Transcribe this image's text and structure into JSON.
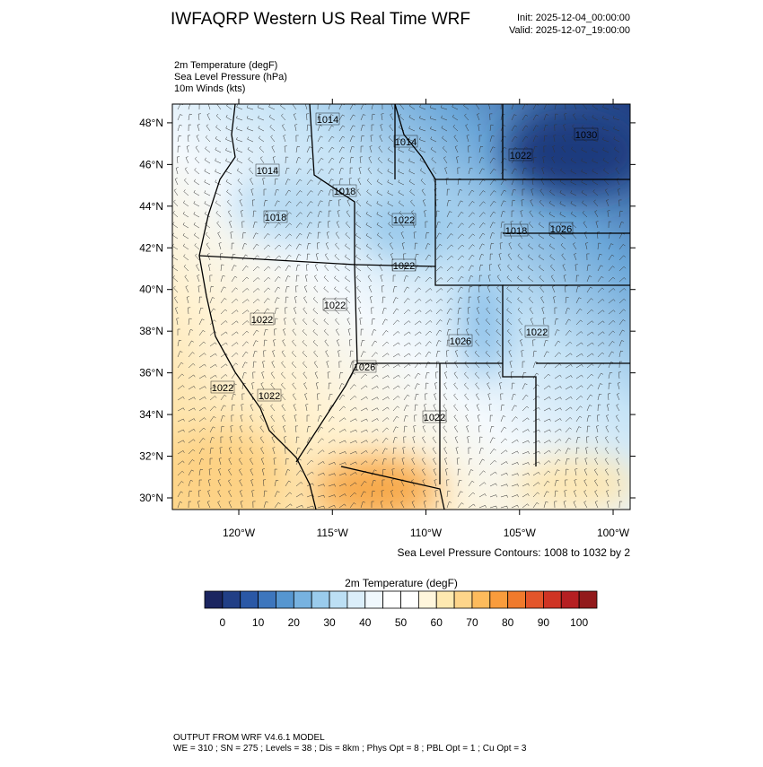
{
  "title": "IWFAQRP Western US Real Time WRF",
  "init": "Init: 2025-12-04_00:00:00",
  "valid": "Valid: 2025-12-07_19:00:00",
  "fields": [
    "2m Temperature   (degF)",
    "Sea Level Pressure   (hPa)",
    "10m Winds   (kts)"
  ],
  "map": {
    "lon_range": [
      -123.55,
      -99.09
    ],
    "lat_range": [
      29.44,
      48.9
    ],
    "lat_ticks": [
      {
        "value": 30,
        "label": "30°N"
      },
      {
        "value": 32,
        "label": "32°N"
      },
      {
        "value": 34,
        "label": "34°N"
      },
      {
        "value": 36,
        "label": "36°N"
      },
      {
        "value": 38,
        "label": "38°N"
      },
      {
        "value": 40,
        "label": "40°N"
      },
      {
        "value": 42,
        "label": "42°N"
      },
      {
        "value": 44,
        "label": "44°N"
      },
      {
        "value": 46,
        "label": "46°N"
      },
      {
        "value": 48,
        "label": "48°N"
      }
    ],
    "lon_ticks": [
      {
        "value": -120,
        "label": "120°W"
      },
      {
        "value": -115,
        "label": "115°W"
      },
      {
        "value": -110,
        "label": "110°W"
      },
      {
        "value": -105,
        "label": "105°W"
      },
      {
        "value": -100,
        "label": "100°W"
      }
    ],
    "contour_labels": [
      "1014",
      "1014",
      "1014",
      "1018",
      "1018",
      "1022",
      "1018",
      "1026",
      "1022",
      "1030",
      "1022",
      "1022",
      "1022",
      "1026",
      "1022",
      "1026",
      "1022",
      "1022",
      "1022"
    ]
  },
  "contour_note": "Sea Level Pressure Contours: 1008 to 1032 by 2",
  "colorbar": {
    "title": "2m Temperature  (degF)",
    "colors": [
      "#1b2560",
      "#213f86",
      "#2a58a6",
      "#3d76bd",
      "#5696d0",
      "#77b2e0",
      "#9acbec",
      "#bcdff4",
      "#dbeefa",
      "#f0f8fd",
      "#ffffff",
      "#ffffff",
      "#fff6dc",
      "#fee9b0",
      "#fed58a",
      "#fdbb5c",
      "#f99c3c",
      "#f07a2c",
      "#e3552a",
      "#cf3424",
      "#b51f22",
      "#921a1c"
    ],
    "ticks": [
      0,
      10,
      20,
      30,
      40,
      50,
      60,
      70,
      80,
      90,
      100
    ]
  },
  "footer": [
    "OUTPUT FROM WRF V4.6.1 MODEL",
    "WE = 310 ; SN = 275 ; Levels = 38 ; Dis = 8km ; Phys Opt = 8 ; PBL Opt = 1 ; Cu Opt = 3"
  ]
}
